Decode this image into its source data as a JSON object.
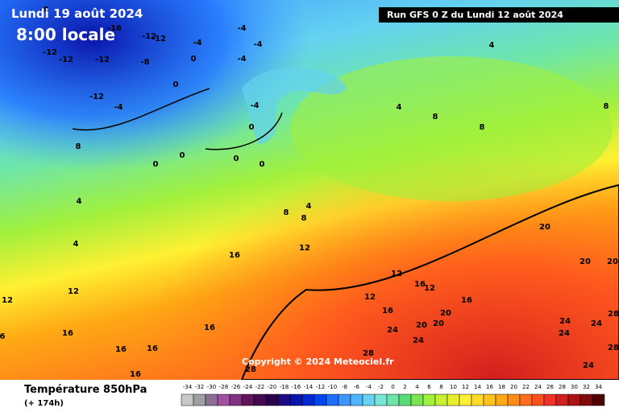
{
  "map": {
    "date": "Lundi 19 août 2024",
    "time": "8:00 locale",
    "run": "Run GFS 0 Z du Lundi 12 août 2024",
    "copyright": "Copyright © 2024 Meteociel.fr",
    "contour_labels": [
      -8,
      -16,
      -12,
      -12,
      -12,
      -12,
      -12,
      -8,
      -4,
      -4,
      -4,
      -4,
      0,
      0,
      -12,
      -4,
      -4,
      0,
      8,
      0,
      0,
      0,
      0,
      4,
      4,
      8,
      8,
      4,
      4,
      4,
      8,
      8,
      8,
      20,
      20,
      20,
      12,
      16,
      12,
      12,
      16,
      16,
      16,
      16,
      16,
      12,
      16,
      12,
      12,
      16,
      16,
      20,
      20,
      20,
      24,
      24,
      28,
      24,
      24,
      24,
      28,
      28,
      24,
      28,
      6
    ]
  },
  "legend": {
    "title": "Température 850hPa",
    "lead": "(+ 174h)",
    "labels": [
      -34,
      -32,
      -30,
      -28,
      -26,
      -24,
      -22,
      -20,
      -18,
      -16,
      -14,
      -12,
      -10,
      -8,
      -6,
      -4,
      -2,
      0,
      2,
      4,
      6,
      8,
      10,
      12,
      14,
      16,
      18,
      20,
      22,
      24,
      26,
      28,
      30,
      32,
      34
    ],
    "colors": [
      "#c8c8c8",
      "#a0a0a0",
      "#8c6e96",
      "#a050a0",
      "#823282",
      "#64145a",
      "#460a50",
      "#28004b",
      "#1e0a82",
      "#0a14aa",
      "#0028d2",
      "#0046f0",
      "#1e6eff",
      "#3c96ff",
      "#50b4ff",
      "#64d2f0",
      "#78e6d2",
      "#6ee6aa",
      "#5adc78",
      "#78e650",
      "#a0f03c",
      "#c8f032",
      "#e6f028",
      "#fff032",
      "#ffdc28",
      "#ffc31e",
      "#ffaa14",
      "#ff8c14",
      "#ff6e1e",
      "#ff501e",
      "#f03228",
      "#d21e1e",
      "#aa1414",
      "#820a0a",
      "#500000"
    ]
  }
}
